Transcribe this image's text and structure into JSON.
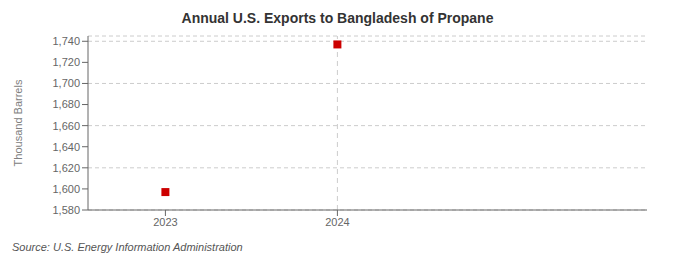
{
  "chart_data": {
    "type": "scatter",
    "title": "Annual U.S. Exports to Bangladesh of Propane",
    "y_label": "Thousand Barrels",
    "source": "Source: U.S. Energy Information Administration",
    "x": [
      2023,
      2024
    ],
    "values": [
      1597,
      1737
    ],
    "color": "#cc0000",
    "marker": "square",
    "xlim": [
      2022.55,
      2025.8
    ],
    "xticks": [
      2023,
      2024
    ],
    "ylim": [
      1580,
      1745
    ],
    "yticks": [
      {
        "value": 1580,
        "label": "1,580"
      },
      {
        "value": 1600,
        "label": "1,600"
      },
      {
        "value": 1620,
        "label": "1,620"
      },
      {
        "value": 1640,
        "label": "1,640"
      },
      {
        "value": 1660,
        "label": "1,660"
      },
      {
        "value": 1680,
        "label": "1,680"
      },
      {
        "value": 1700,
        "label": "1,700"
      },
      {
        "value": 1720,
        "label": "1,720"
      },
      {
        "value": 1740,
        "label": "1,740"
      }
    ],
    "grid": "y",
    "vline_x": 2024
  }
}
